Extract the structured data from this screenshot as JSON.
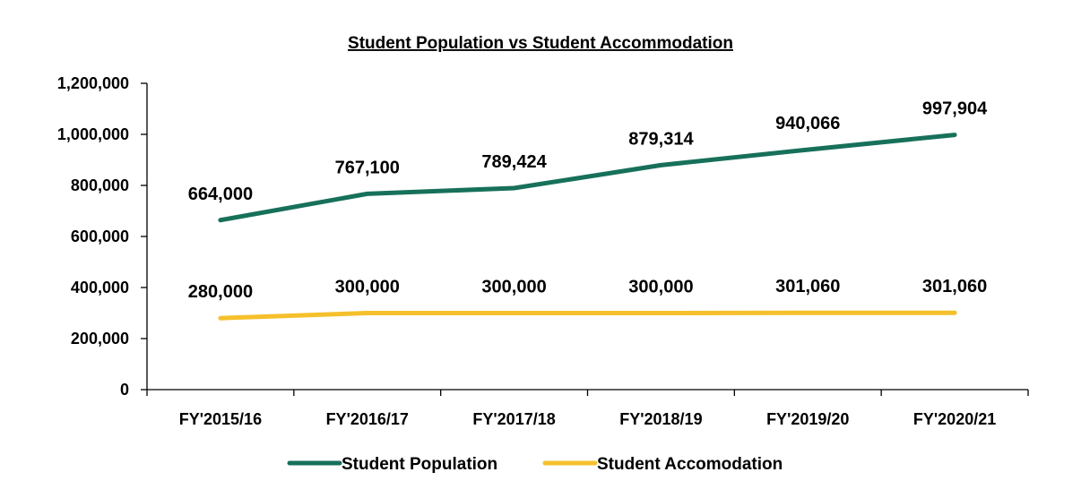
{
  "chart_data": {
    "type": "line",
    "title": "Student Population vs Student Accommodation",
    "xlabel": "",
    "ylabel": "",
    "categories": [
      "FY'2015/16",
      "FY'2016/17",
      "FY'2017/18",
      "FY'2018/19",
      "FY'2019/20",
      "FY'2020/21"
    ],
    "ylim": [
      0,
      1200000
    ],
    "yticks": [
      0,
      200000,
      400000,
      600000,
      800000,
      1000000,
      1200000
    ],
    "ytick_labels": [
      "0",
      "200,000",
      "400,000",
      "600,000",
      "800,000",
      "1,000,000",
      "1,200,000"
    ],
    "grid": false,
    "legend_position": "bottom",
    "series": [
      {
        "name": "Student Population",
        "color": "#17705a",
        "values": [
          664000,
          767100,
          789424,
          879314,
          940066,
          997904
        ],
        "labels": [
          "664,000",
          "767,100",
          "789,424",
          "879,314",
          "940,066",
          "997,904"
        ]
      },
      {
        "name": "Student Accomodation",
        "color": "#f5c02c",
        "values": [
          280000,
          300000,
          300000,
          300000,
          301060,
          301060
        ],
        "labels": [
          "280,000",
          "300,000",
          "300,000",
          "300,000",
          "301,060",
          "301,060"
        ]
      }
    ]
  }
}
